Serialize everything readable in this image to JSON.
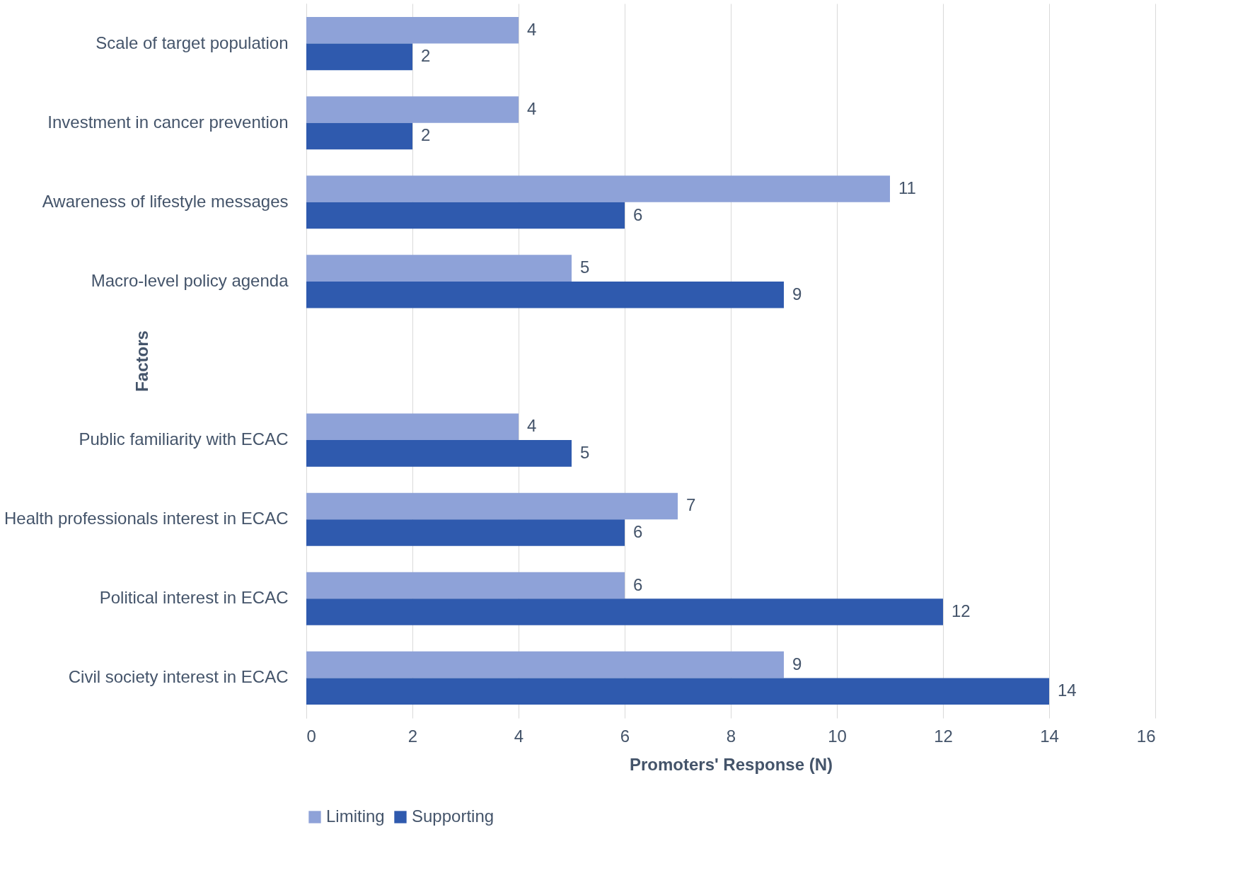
{
  "chart_data": {
    "type": "bar",
    "orientation": "horizontal",
    "xlabel": "Promoters' Response (N)",
    "ylabel": "Factors",
    "categories": [
      "Scale of target population",
      "Investment in cancer prevention",
      "Awareness of lifestyle messages",
      "Macro-level policy agenda",
      null,
      "Public familiarity with ECAC",
      "Health professionals interest in ECAC",
      "Political interest in ECAC",
      "Civil society interest in ECAC"
    ],
    "series": [
      {
        "name": "Limiting",
        "color": "#8ea2d8",
        "values": [
          4,
          4,
          11,
          5,
          null,
          4,
          7,
          6,
          9
        ]
      },
      {
        "name": "Supporting",
        "color": "#2f5aae",
        "values": [
          2,
          2,
          6,
          9,
          null,
          5,
          6,
          12,
          14
        ]
      }
    ],
    "xlim": [
      0,
      16
    ],
    "xticks": [
      0,
      2,
      4,
      6,
      8,
      10,
      12,
      14,
      16
    ],
    "grid": "x",
    "legend": "bottom",
    "data_labels": true
  }
}
